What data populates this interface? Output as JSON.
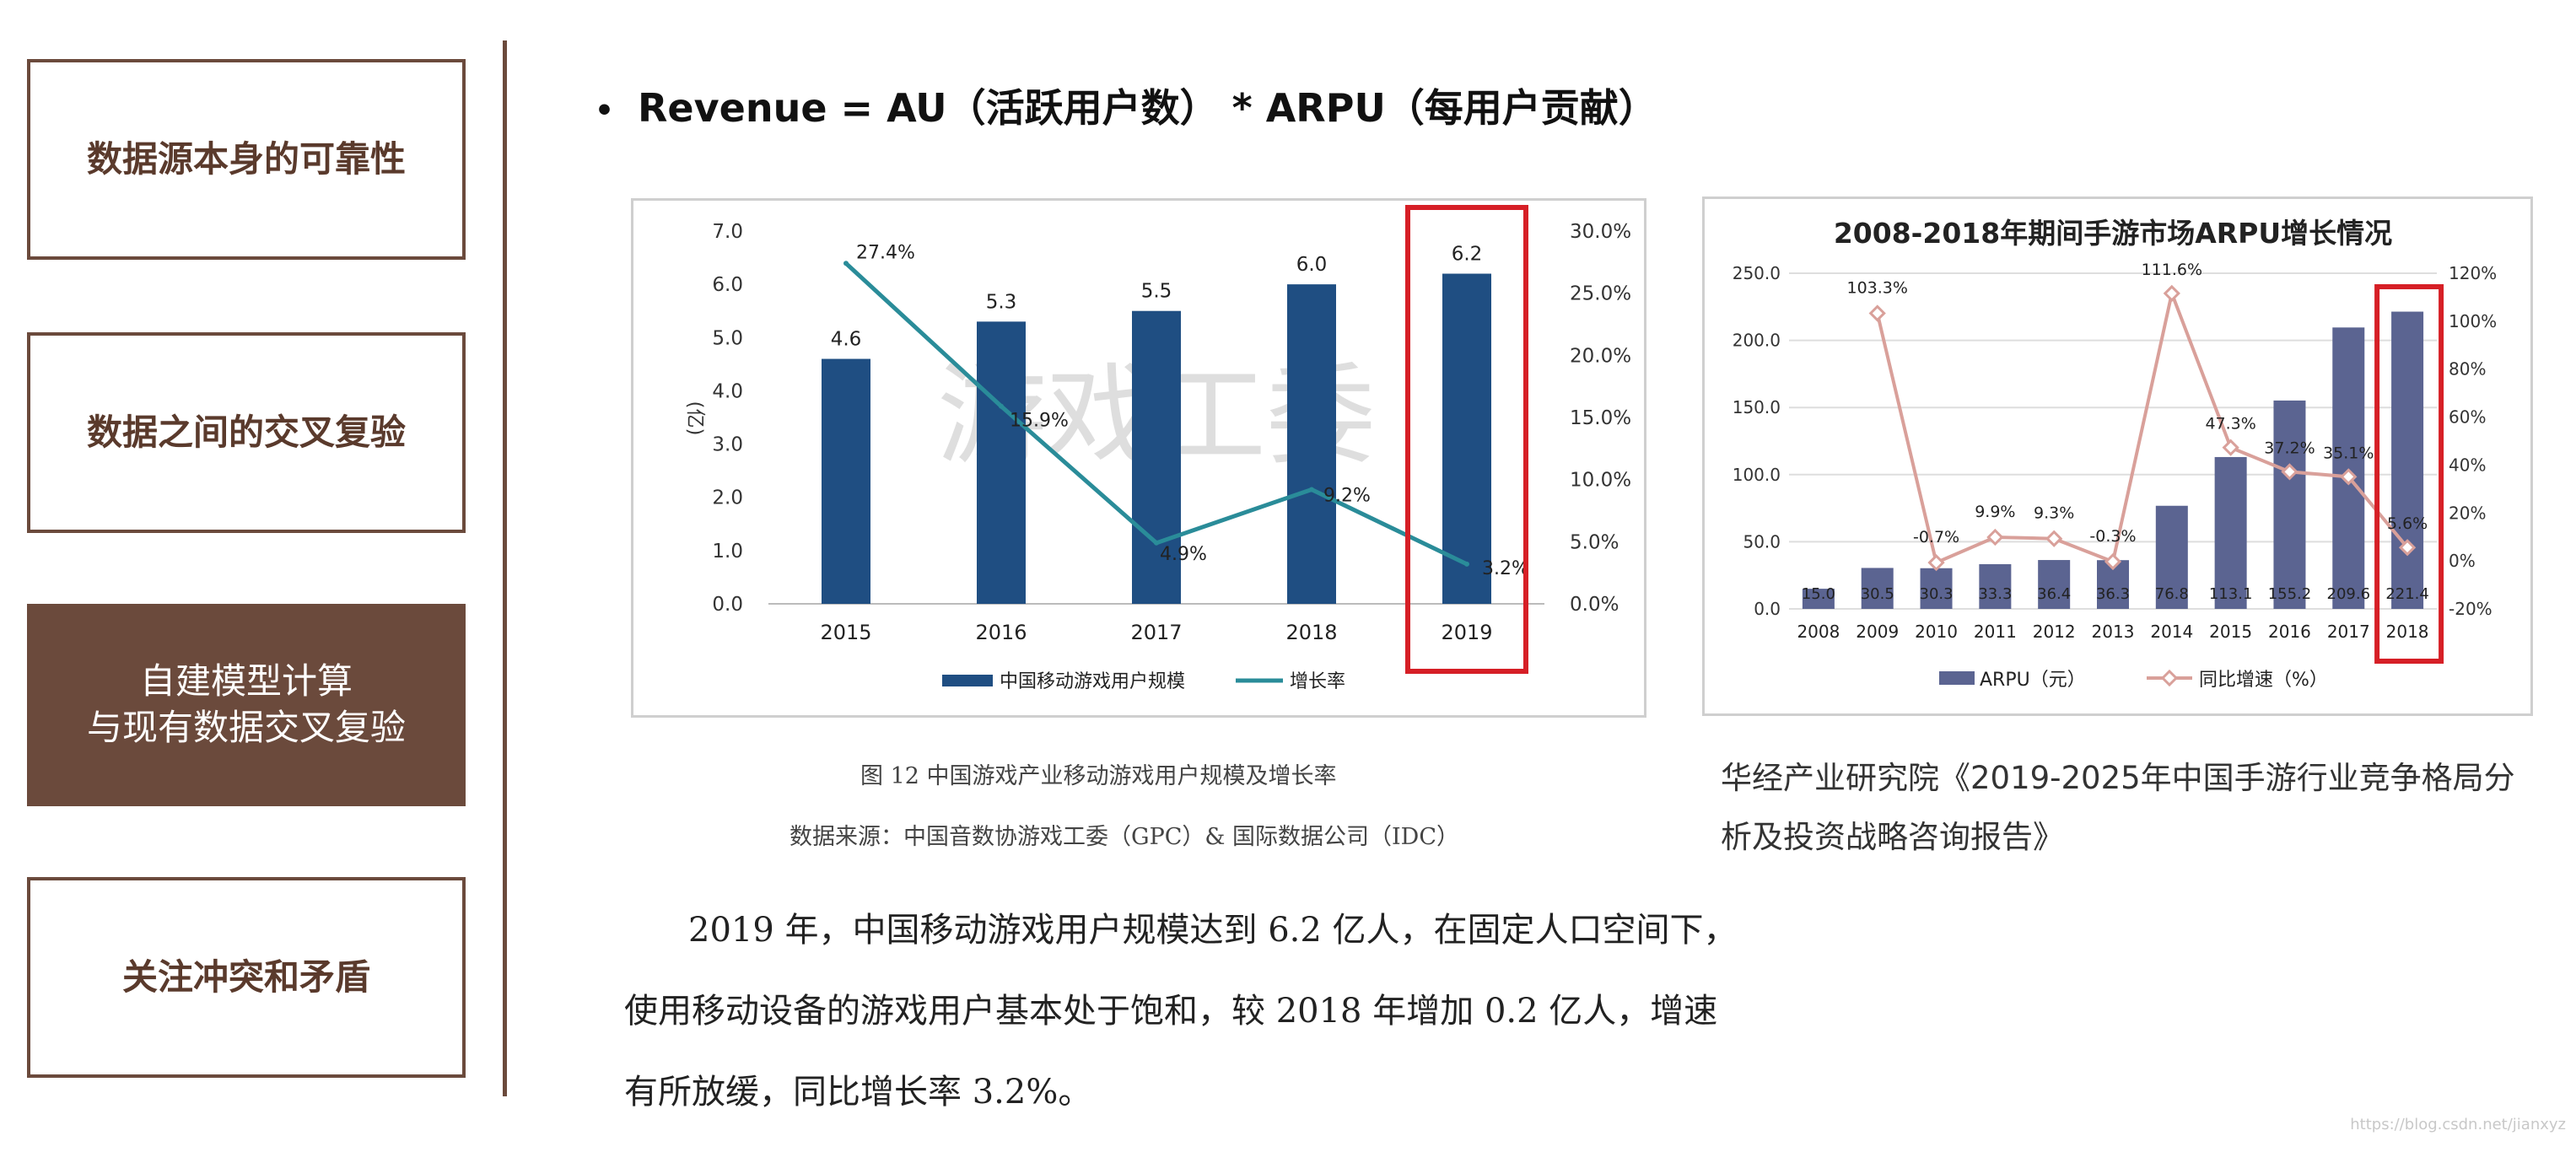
{
  "sidebar": {
    "items": [
      {
        "lines": [
          "数据源本身的可靠性"
        ],
        "active": false
      },
      {
        "lines": [
          "数据之间的交叉复验"
        ],
        "active": false
      },
      {
        "lines": [
          "自建模型计算",
          "与现有数据交叉复验"
        ],
        "active": true
      },
      {
        "lines": [
          "关注冲突和矛盾"
        ],
        "active": false
      }
    ]
  },
  "formula": {
    "bullet": "•",
    "text": "Revenue  = AU（活跃用户数） * ARPU（每用户贡献）"
  },
  "colors": {
    "brown": "#6b4a3c",
    "bar_blue": "#1f4e82",
    "line_teal": "#2a8c99",
    "bar_slate": "#5b6491",
    "line_pink": "#d9a09a",
    "highlight_red": "#d61f26"
  },
  "chart_data": [
    {
      "type": "bar",
      "title": "",
      "categories": [
        "2015",
        "2016",
        "2017",
        "2018",
        "2019"
      ],
      "series": [
        {
          "name": "中国移动游戏用户规模",
          "axis": "left",
          "kind": "bar",
          "values": [
            4.6,
            5.3,
            5.5,
            6.0,
            6.2
          ],
          "labels": [
            "4.6",
            "5.3",
            "5.5",
            "6.0",
            "6.2"
          ]
        },
        {
          "name": "增长率",
          "axis": "right",
          "kind": "line",
          "values": [
            27.4,
            15.9,
            4.9,
            9.2,
            3.2
          ],
          "labels": [
            "27.4%",
            "15.9%",
            "4.9%",
            "9.2%",
            "3.2%"
          ]
        }
      ],
      "ylabel": "(亿)",
      "ylim": [
        0,
        7
      ],
      "yticks": [
        "0.0",
        "1.0",
        "2.0",
        "3.0",
        "4.0",
        "5.0",
        "6.0",
        "7.0"
      ],
      "y2lim": [
        0,
        30
      ],
      "y2ticks": [
        "0.0%",
        "5.0%",
        "10.0%",
        "15.0%",
        "20.0%",
        "25.0%",
        "30.0%"
      ],
      "watermark": "游戏工委",
      "highlight": "2019",
      "legend": "bottom",
      "grid": false
    },
    {
      "type": "bar",
      "title": "2008-2018年期间手游市场ARPU增长情况",
      "categories": [
        "2008",
        "2009",
        "2010",
        "2011",
        "2012",
        "2013",
        "2014",
        "2015",
        "2016",
        "2017",
        "2018"
      ],
      "series": [
        {
          "name": "ARPU（元）",
          "axis": "left",
          "kind": "bar",
          "values": [
            15.0,
            30.5,
            30.3,
            33.3,
            36.4,
            36.3,
            76.8,
            113.1,
            155.2,
            209.6,
            221.4
          ],
          "labels": [
            "15.0",
            "30.5",
            "30.3",
            "33.3",
            "36.4",
            "36.3",
            "76.8",
            "113.1",
            "155.2",
            "209.6",
            "221.4"
          ]
        },
        {
          "name": "同比增速（%）",
          "axis": "right",
          "kind": "line",
          "x": [
            "2009",
            "2010",
            "2011",
            "2012",
            "2013",
            "2014",
            "2015",
            "2016",
            "2017",
            "2018"
          ],
          "values": [
            103.3,
            -0.7,
            9.9,
            9.3,
            -0.3,
            111.6,
            47.3,
            37.2,
            35.1,
            5.6
          ],
          "labels": [
            "103.3%",
            "-0.7%",
            "9.9%",
            "9.3%",
            "-0.3%",
            "111.6%",
            "47.3%",
            "37.2%",
            "35.1%",
            "5.6%"
          ]
        }
      ],
      "ylim": [
        0,
        250
      ],
      "yticks": [
        "0.0",
        "50.0",
        "100.0",
        "150.0",
        "200.0",
        "250.0"
      ],
      "y2lim": [
        -20,
        120
      ],
      "y2ticks": [
        "-20%",
        "0%",
        "20%",
        "40%",
        "60%",
        "80%",
        "100%",
        "120%"
      ],
      "highlight": "2018",
      "legend": "bottom",
      "grid": true
    }
  ],
  "chart1_caption": {
    "figure": "图 12  中国游戏产业移动游戏用户规模及增长率",
    "source": "数据来源：中国音数协游戏工委（GPC）& 国际数据公司（IDC）"
  },
  "paragraph": {
    "lines": [
      "2019 年，中国移动游戏用户规模达到 6.2 亿人，在固定人口空间下，",
      "使用移动设备的游戏用户基本处于饱和，较 2018 年增加 0.2 亿人，增速",
      "有所放缓，同比增长率 3.2%。"
    ]
  },
  "chart2_source": {
    "lines": [
      "华经产业研究院《2019-2025年中国手游行业竞争格局分",
      "析及投资战略咨询报告》"
    ]
  },
  "watermark_url": "https://blog.csdn.net/jianxyz"
}
